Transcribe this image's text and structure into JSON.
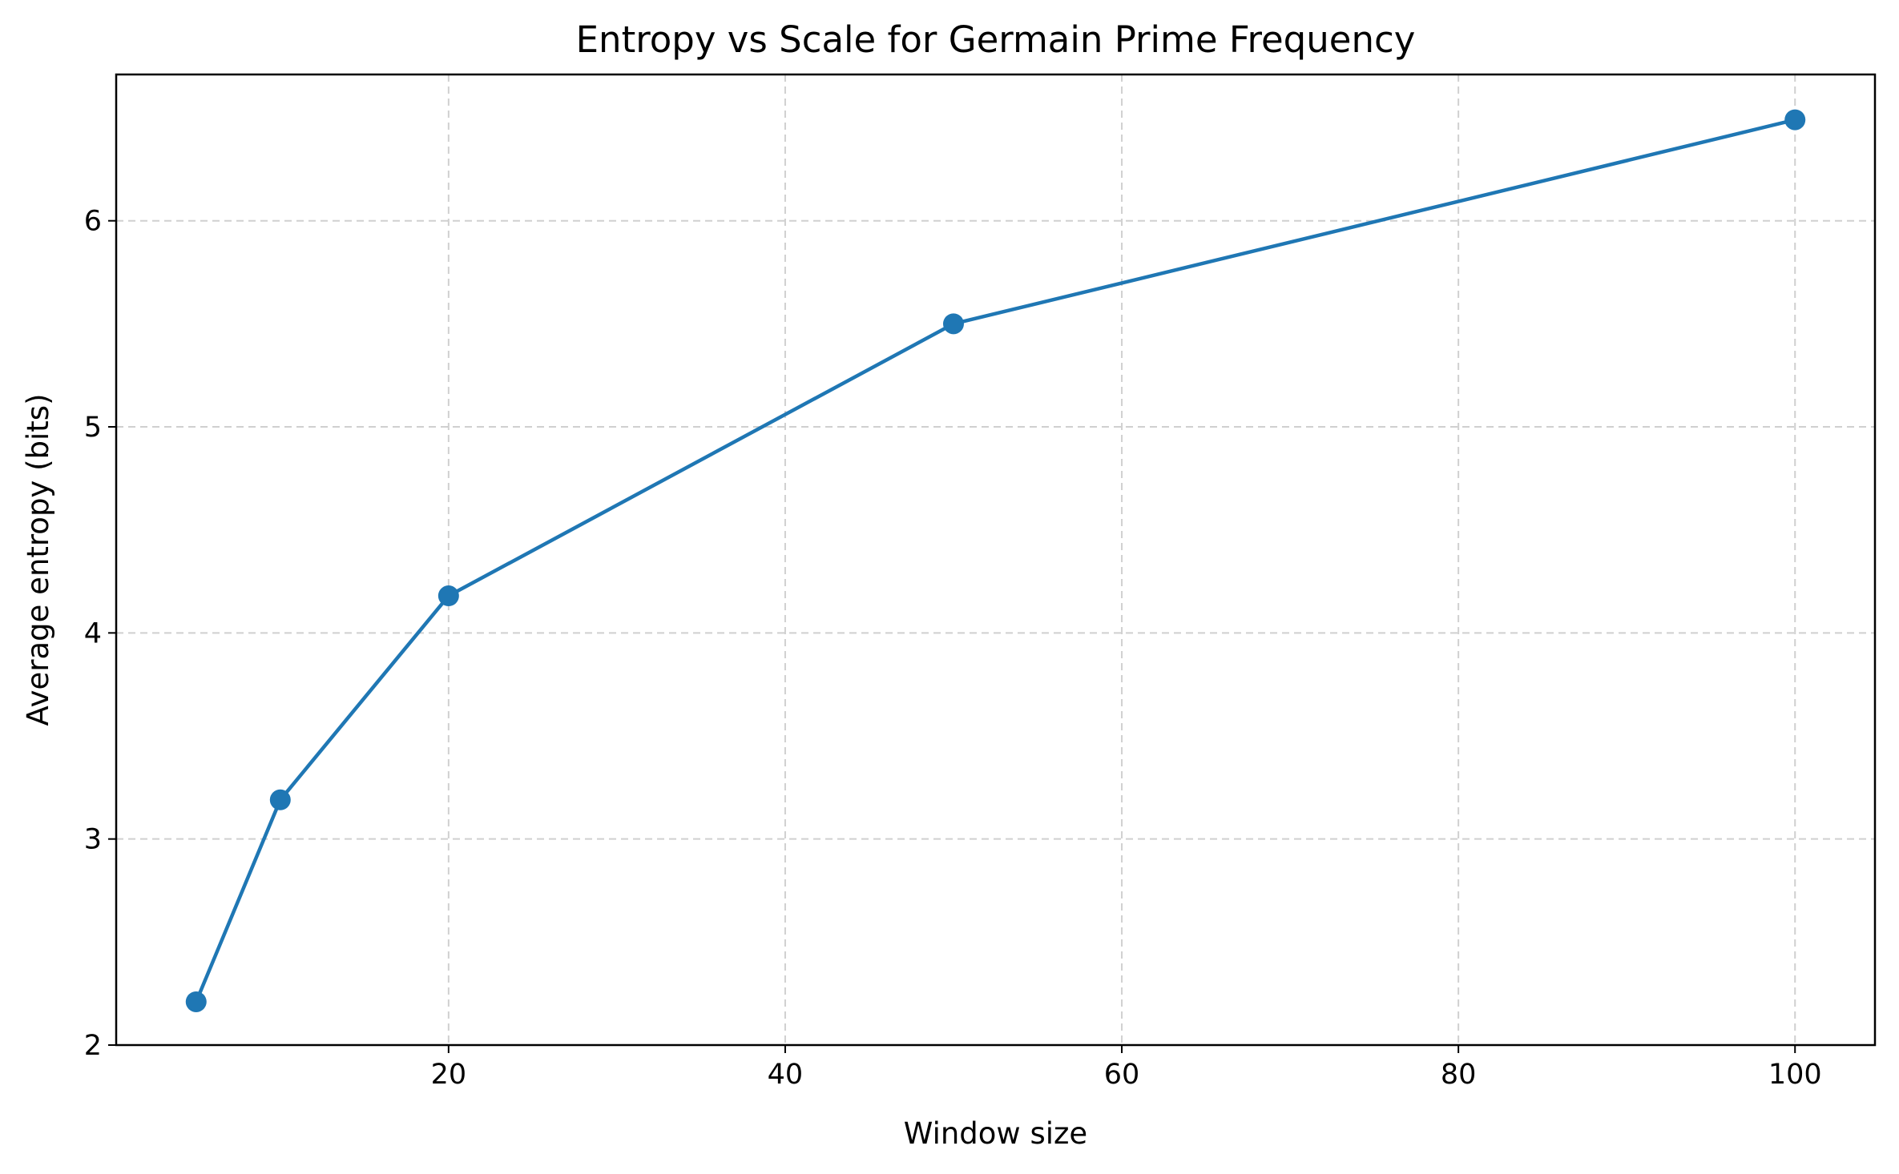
{
  "chart_data": {
    "type": "line",
    "title": "Entropy vs Scale for Germain Prime Frequency",
    "xlabel": "Window size",
    "ylabel": "Average entropy (bits)",
    "xlim": [
      0.25,
      104.75
    ],
    "ylim": [
      2,
      6.71
    ],
    "xticks": [
      20,
      40,
      60,
      80,
      100
    ],
    "yticks": [
      2,
      3,
      4,
      5,
      6
    ],
    "grid": true,
    "legend": "none",
    "series": [
      {
        "color": "#1f77b4",
        "marker": "circle",
        "x": [
          5,
          10,
          20,
          50,
          100
        ],
        "y": [
          2.21,
          3.19,
          4.18,
          5.5,
          6.49
        ]
      }
    ]
  }
}
